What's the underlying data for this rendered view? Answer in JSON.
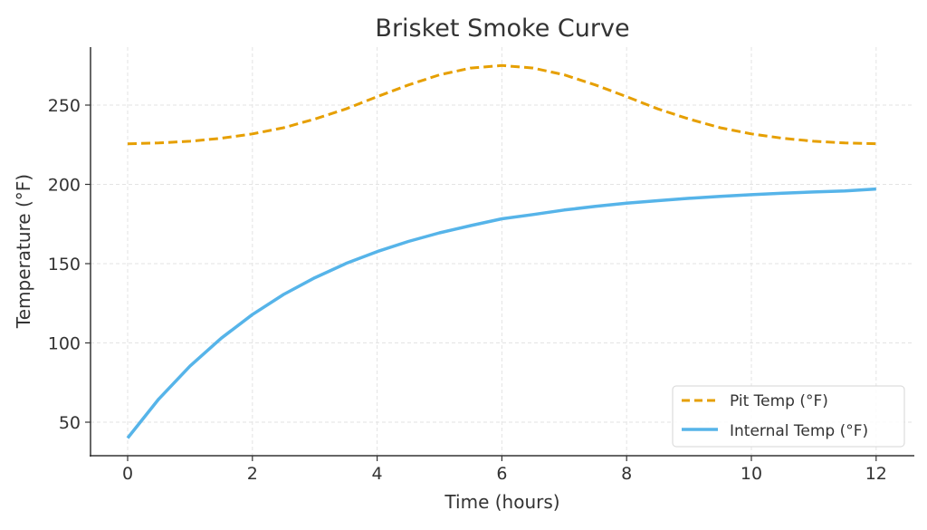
{
  "chart_data": {
    "type": "line",
    "title": "Brisket Smoke Curve",
    "xlabel": "Time (hours)",
    "ylabel": "Temperature (°F)",
    "xlim": [
      -0.6,
      12.6
    ],
    "ylim": [
      28,
      288
    ],
    "x_ticks": [
      0,
      2,
      4,
      6,
      8,
      10,
      12
    ],
    "y_ticks": [
      50,
      100,
      150,
      200,
      250
    ],
    "grid": true,
    "legend_position": "lower right",
    "x": [
      0,
      0.5,
      1,
      1.5,
      2,
      2.5,
      3,
      3.5,
      4,
      4.5,
      5,
      5.5,
      6,
      6.5,
      7,
      7.5,
      8,
      8.5,
      9,
      9.5,
      10,
      10.5,
      11,
      11.5,
      12
    ],
    "series": [
      {
        "name": "Pit Temp (°F)",
        "color": "#E69F00",
        "style": "dashed",
        "values": [
          225.6,
          226.1,
          227.2,
          229.1,
          231.8,
          235.7,
          241.2,
          247.6,
          255.3,
          262.7,
          269.1,
          273.4,
          275.0,
          273.4,
          269.1,
          262.7,
          255.3,
          247.6,
          241.2,
          235.7,
          231.8,
          229.1,
          227.2,
          226.1,
          225.6
        ]
      },
      {
        "name": "Internal Temp (°F)",
        "color": "#56B4E9",
        "style": "solid",
        "values": [
          40.0,
          64.6,
          85.4,
          103.0,
          117.9,
          130.6,
          141.1,
          150.1,
          157.6,
          164.0,
          169.4,
          174.0,
          178.3,
          181.0,
          183.8,
          186.1,
          188.1,
          189.7,
          191.2,
          192.4,
          193.5,
          194.4,
          195.2,
          195.8,
          197.1
        ]
      }
    ]
  }
}
